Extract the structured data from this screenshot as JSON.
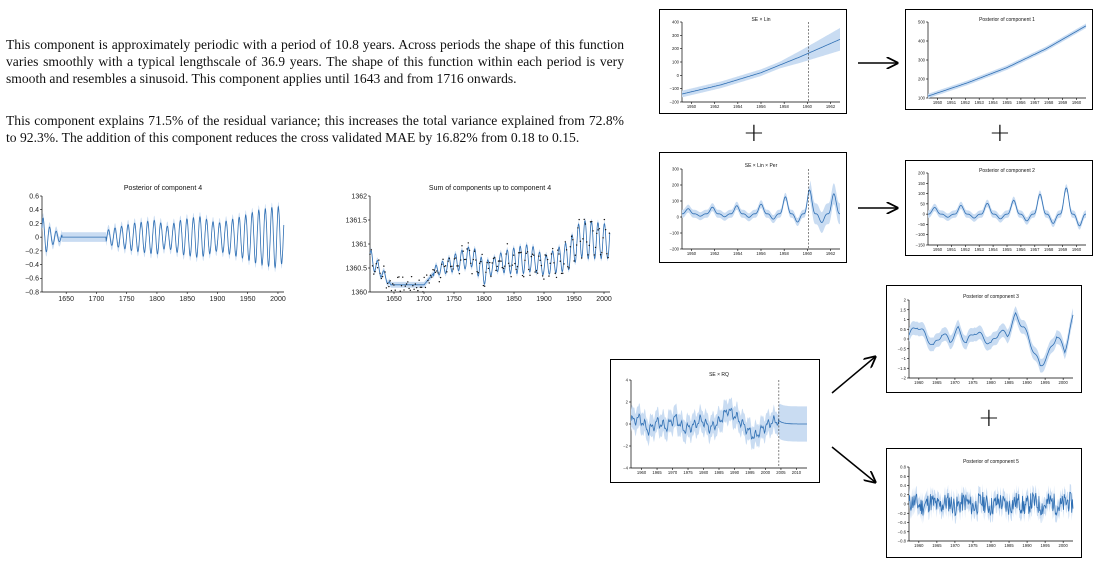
{
  "text": {
    "p1": "This component is approximately periodic with a period of 10.8 years. Across periods the shape of this function varies smoothly with a typical lengthscale of 36.9 years. The shape of this function within each period is very smooth and resembles a sinusoid. This component applies until 1643 and from 1716 onwards.",
    "p2": "This component explains 71.5% of the residual variance; this increases the total variance explained from 72.8% to 92.3%. The addition of this component reduces the cross validated MAE by 16.82% from 0.18 to 0.15."
  },
  "colors": {
    "line": "#2f6fb3",
    "band": "#c9dcf2",
    "dots": "#111111"
  },
  "plus_symbol": "+",
  "chart_data": [
    {
      "id": "post4",
      "type": "line",
      "title": "Posterior of component 4",
      "xlim": [
        1610,
        2010
      ],
      "ylim": [
        -0.8,
        0.6
      ],
      "xticks": [
        1650,
        1700,
        1750,
        1800,
        1850,
        1900,
        1950,
        2000
      ],
      "yticks": [
        -0.8,
        -0.6,
        -0.4,
        -0.2,
        0,
        0.2,
        0.4,
        0.6
      ],
      "ytick_labels": [
        "−0.8",
        "−0.6",
        "−0.4",
        "−0.2",
        "0",
        "0.2",
        "0.4",
        "0.6"
      ],
      "series": [
        {
          "period_years": 10.8,
          "active_until": 1643,
          "active_from": 1716,
          "amplitude": {
            "x": [
              1610,
              1625,
              1643,
              1716,
              1760,
              1800,
              1815,
              1840,
              1870,
              1900,
              1940,
              1970,
              2000,
              2010
            ],
            "y": [
              0.3,
              0.12,
              0.05,
              0.1,
              0.2,
              0.25,
              0.15,
              0.25,
              0.3,
              0.2,
              0.3,
              0.4,
              0.45,
              0.35
            ]
          }
        }
      ]
    },
    {
      "id": "sum4",
      "type": "line",
      "title": "Sum of components up to component 4",
      "xlim": [
        1610,
        2010
      ],
      "ylim": [
        1360,
        1362
      ],
      "xticks": [
        1650,
        1700,
        1750,
        1800,
        1850,
        1900,
        1950,
        2000
      ],
      "yticks": [
        1360,
        1360.5,
        1361,
        1361.5,
        1362
      ],
      "ytick_labels": [
        "1360",
        "1360.5",
        "1361",
        "1361.5",
        "1362"
      ],
      "series": [
        {
          "period_years": 10.8,
          "baseline": {
            "x": [
              1610,
              1630,
              1645,
              1700,
              1720,
              1750,
              1780,
              1800,
              1820,
              1850,
              1880,
              1900,
              1940,
              1960,
              2010
            ],
            "y": [
              1360.7,
              1360.4,
              1360.15,
              1360.15,
              1360.45,
              1360.6,
              1360.75,
              1360.4,
              1360.6,
              1360.65,
              1360.7,
              1360.55,
              1360.75,
              1361.1,
              1361.05
            ]
          },
          "amplitude": {
            "x": [
              1610,
              1643,
              1716,
              1760,
              1800,
              1815,
              1840,
              1870,
              1900,
              1940,
              1970,
              2010
            ],
            "y": [
              0.2,
              0.05,
              0.1,
              0.2,
              0.25,
              0.15,
              0.25,
              0.3,
              0.2,
              0.3,
              0.4,
              0.35
            ]
          }
        }
      ]
    },
    {
      "id": "selin",
      "type": "line",
      "title": "SE × Lin",
      "xlim": [
        1958.8,
        1963.5
      ],
      "ylim": [
        -200,
        400
      ],
      "xticks": [
        1950,
        1952,
        1954,
        1956,
        1958,
        1960,
        1962
      ],
      "yticks": [
        -200,
        -100,
        0,
        100,
        200,
        300,
        400
      ],
      "ytick_labels": [
        "−200",
        "−100",
        "0",
        "100",
        "200",
        "300",
        "400"
      ],
      "tick_label_years": [
        "1950",
        "1952",
        "1954",
        "1956",
        "1958",
        "1960",
        "1962"
      ],
      "series": [
        {
          "x": [
            0,
            0.25,
            0.5,
            0.75,
            1
          ],
          "y": [
            -140,
            -70,
            20,
            140,
            270
          ]
        }
      ],
      "dashed_x_fraction": 0.8
    },
    {
      "id": "post1",
      "type": "line",
      "title": "Posterior of component 1",
      "ylim": [
        100,
        500
      ],
      "yticks": [
        100,
        200,
        300,
        400,
        500
      ],
      "ytick_labels": [
        "100",
        "200",
        "300",
        "400",
        "500"
      ],
      "xtick_labels": [
        "1950",
        "1951",
        "1952",
        "1953",
        "1954",
        "1955",
        "1956",
        "1957",
        "1958",
        "1959",
        "1960"
      ],
      "series": [
        {
          "x": [
            0,
            0.25,
            0.5,
            0.75,
            1
          ],
          "y": [
            110,
            180,
            260,
            360,
            480
          ]
        }
      ]
    },
    {
      "id": "selinper",
      "type": "line",
      "title": "SE × Lin × Per",
      "ylim": [
        -200,
        300
      ],
      "yticks": [
        -200,
        -100,
        0,
        100,
        200,
        300
      ],
      "ytick_labels": [
        "−200",
        "−100",
        "0",
        "100",
        "200",
        "300"
      ],
      "xtick_labels": [
        "1950",
        "1952",
        "1954",
        "1956",
        "1958",
        "1960",
        "1962"
      ],
      "series": [
        {
          "cycles": 13,
          "amplitude": {
            "x": [
              0,
              0.5,
              0.8,
              1
            ],
            "y": [
              30,
              60,
              150,
              120
            ]
          }
        }
      ],
      "dashed_x_fraction": 0.8
    },
    {
      "id": "post2",
      "type": "line",
      "title": "Posterior of component 2",
      "ylim": [
        -150,
        200
      ],
      "yticks": [
        -150,
        -100,
        -50,
        0,
        50,
        100,
        150,
        200
      ],
      "ytick_labels": [
        "−150",
        "−100",
        "−50",
        "0",
        "50",
        "100",
        "150",
        "200"
      ],
      "xtick_labels": [
        "1950",
        "1951",
        "1952",
        "1953",
        "1954",
        "1955",
        "1956",
        "1957",
        "1958",
        "1959",
        "1960"
      ],
      "series": [
        {
          "cycles": 12,
          "amplitude": {
            "x": [
              0,
              0.5,
              1
            ],
            "y": [
              30,
              60,
              150
            ]
          }
        }
      ]
    },
    {
      "id": "post3",
      "type": "line",
      "title": "Posterior of component 3",
      "ylim": [
        -2,
        2
      ],
      "yticks": [
        -2,
        -1.5,
        -1,
        -0.5,
        0,
        0.5,
        1,
        1.5,
        2
      ],
      "ytick_labels": [
        "−2",
        "−1.5",
        "−1",
        "−0.5",
        "0",
        "0.5",
        "1",
        "1.5",
        "2"
      ],
      "xtick_labels": [
        "1960",
        "1965",
        "1970",
        "1975",
        "1980",
        "1985",
        "1990",
        "1995",
        "2000"
      ],
      "series": [
        {
          "x": [
            0,
            0.05,
            0.1,
            0.15,
            0.2,
            0.25,
            0.3,
            0.35,
            0.4,
            0.45,
            0.5,
            0.55,
            0.6,
            0.65,
            0.7,
            0.75,
            0.8,
            0.85,
            0.9,
            0.95,
            1
          ],
          "y": [
            0.2,
            0.7,
            0.2,
            -0.4,
            0.3,
            -0.1,
            0.5,
            -0.2,
            0.4,
            0.1,
            -0.3,
            0.4,
            0.2,
            1.2,
            0.6,
            -0.4,
            -1.4,
            -0.8,
            0.2,
            -0.6,
            1.1
          ]
        }
      ]
    },
    {
      "id": "serq",
      "type": "line",
      "title": "SE × RQ",
      "ylim": [
        -4,
        4
      ],
      "yticks": [
        -4,
        -2,
        0,
        2,
        4
      ],
      "ytick_labels": [
        "−4",
        "−2",
        "0",
        "2",
        "4"
      ],
      "xtick_labels": [
        "1960",
        "1965",
        "1970",
        "1975",
        "1980",
        "1985",
        "1990",
        "1995",
        "2000",
        "2005",
        "2010"
      ],
      "series": [
        {
          "x": [
            0,
            0.05,
            0.1,
            0.15,
            0.2,
            0.25,
            0.3,
            0.35,
            0.4,
            0.45,
            0.5,
            0.55,
            0.6,
            0.65,
            0.7,
            0.75,
            0.8,
            0.84
          ],
          "y": [
            0.3,
            0.5,
            -0.6,
            0.2,
            -0.3,
            0.6,
            -0.5,
            -0.2,
            0.4,
            -0.4,
            0.2,
            1.3,
            0.6,
            -0.3,
            -1.2,
            -0.4,
            0.2,
            0.3
          ]
        }
      ],
      "dashed_x_fraction": 0.84
    },
    {
      "id": "post5",
      "type": "line",
      "title": "Posterior of component 5",
      "ylim": [
        -0.8,
        0.8
      ],
      "yticks": [
        -0.8,
        -0.6,
        -0.4,
        -0.2,
        0,
        0.2,
        0.4,
        0.6,
        0.8
      ],
      "ytick_labels": [
        "−0.8",
        "−0.6",
        "−0.4",
        "−0.2",
        "0",
        "0.2",
        "0.4",
        "0.6",
        "0.8"
      ],
      "xtick_labels": [
        "1960",
        "1965",
        "1970",
        "1975",
        "1980",
        "1985",
        "1990",
        "1995",
        "2000"
      ],
      "series": [
        {
          "noise_amplitude": 0.22
        }
      ]
    }
  ]
}
